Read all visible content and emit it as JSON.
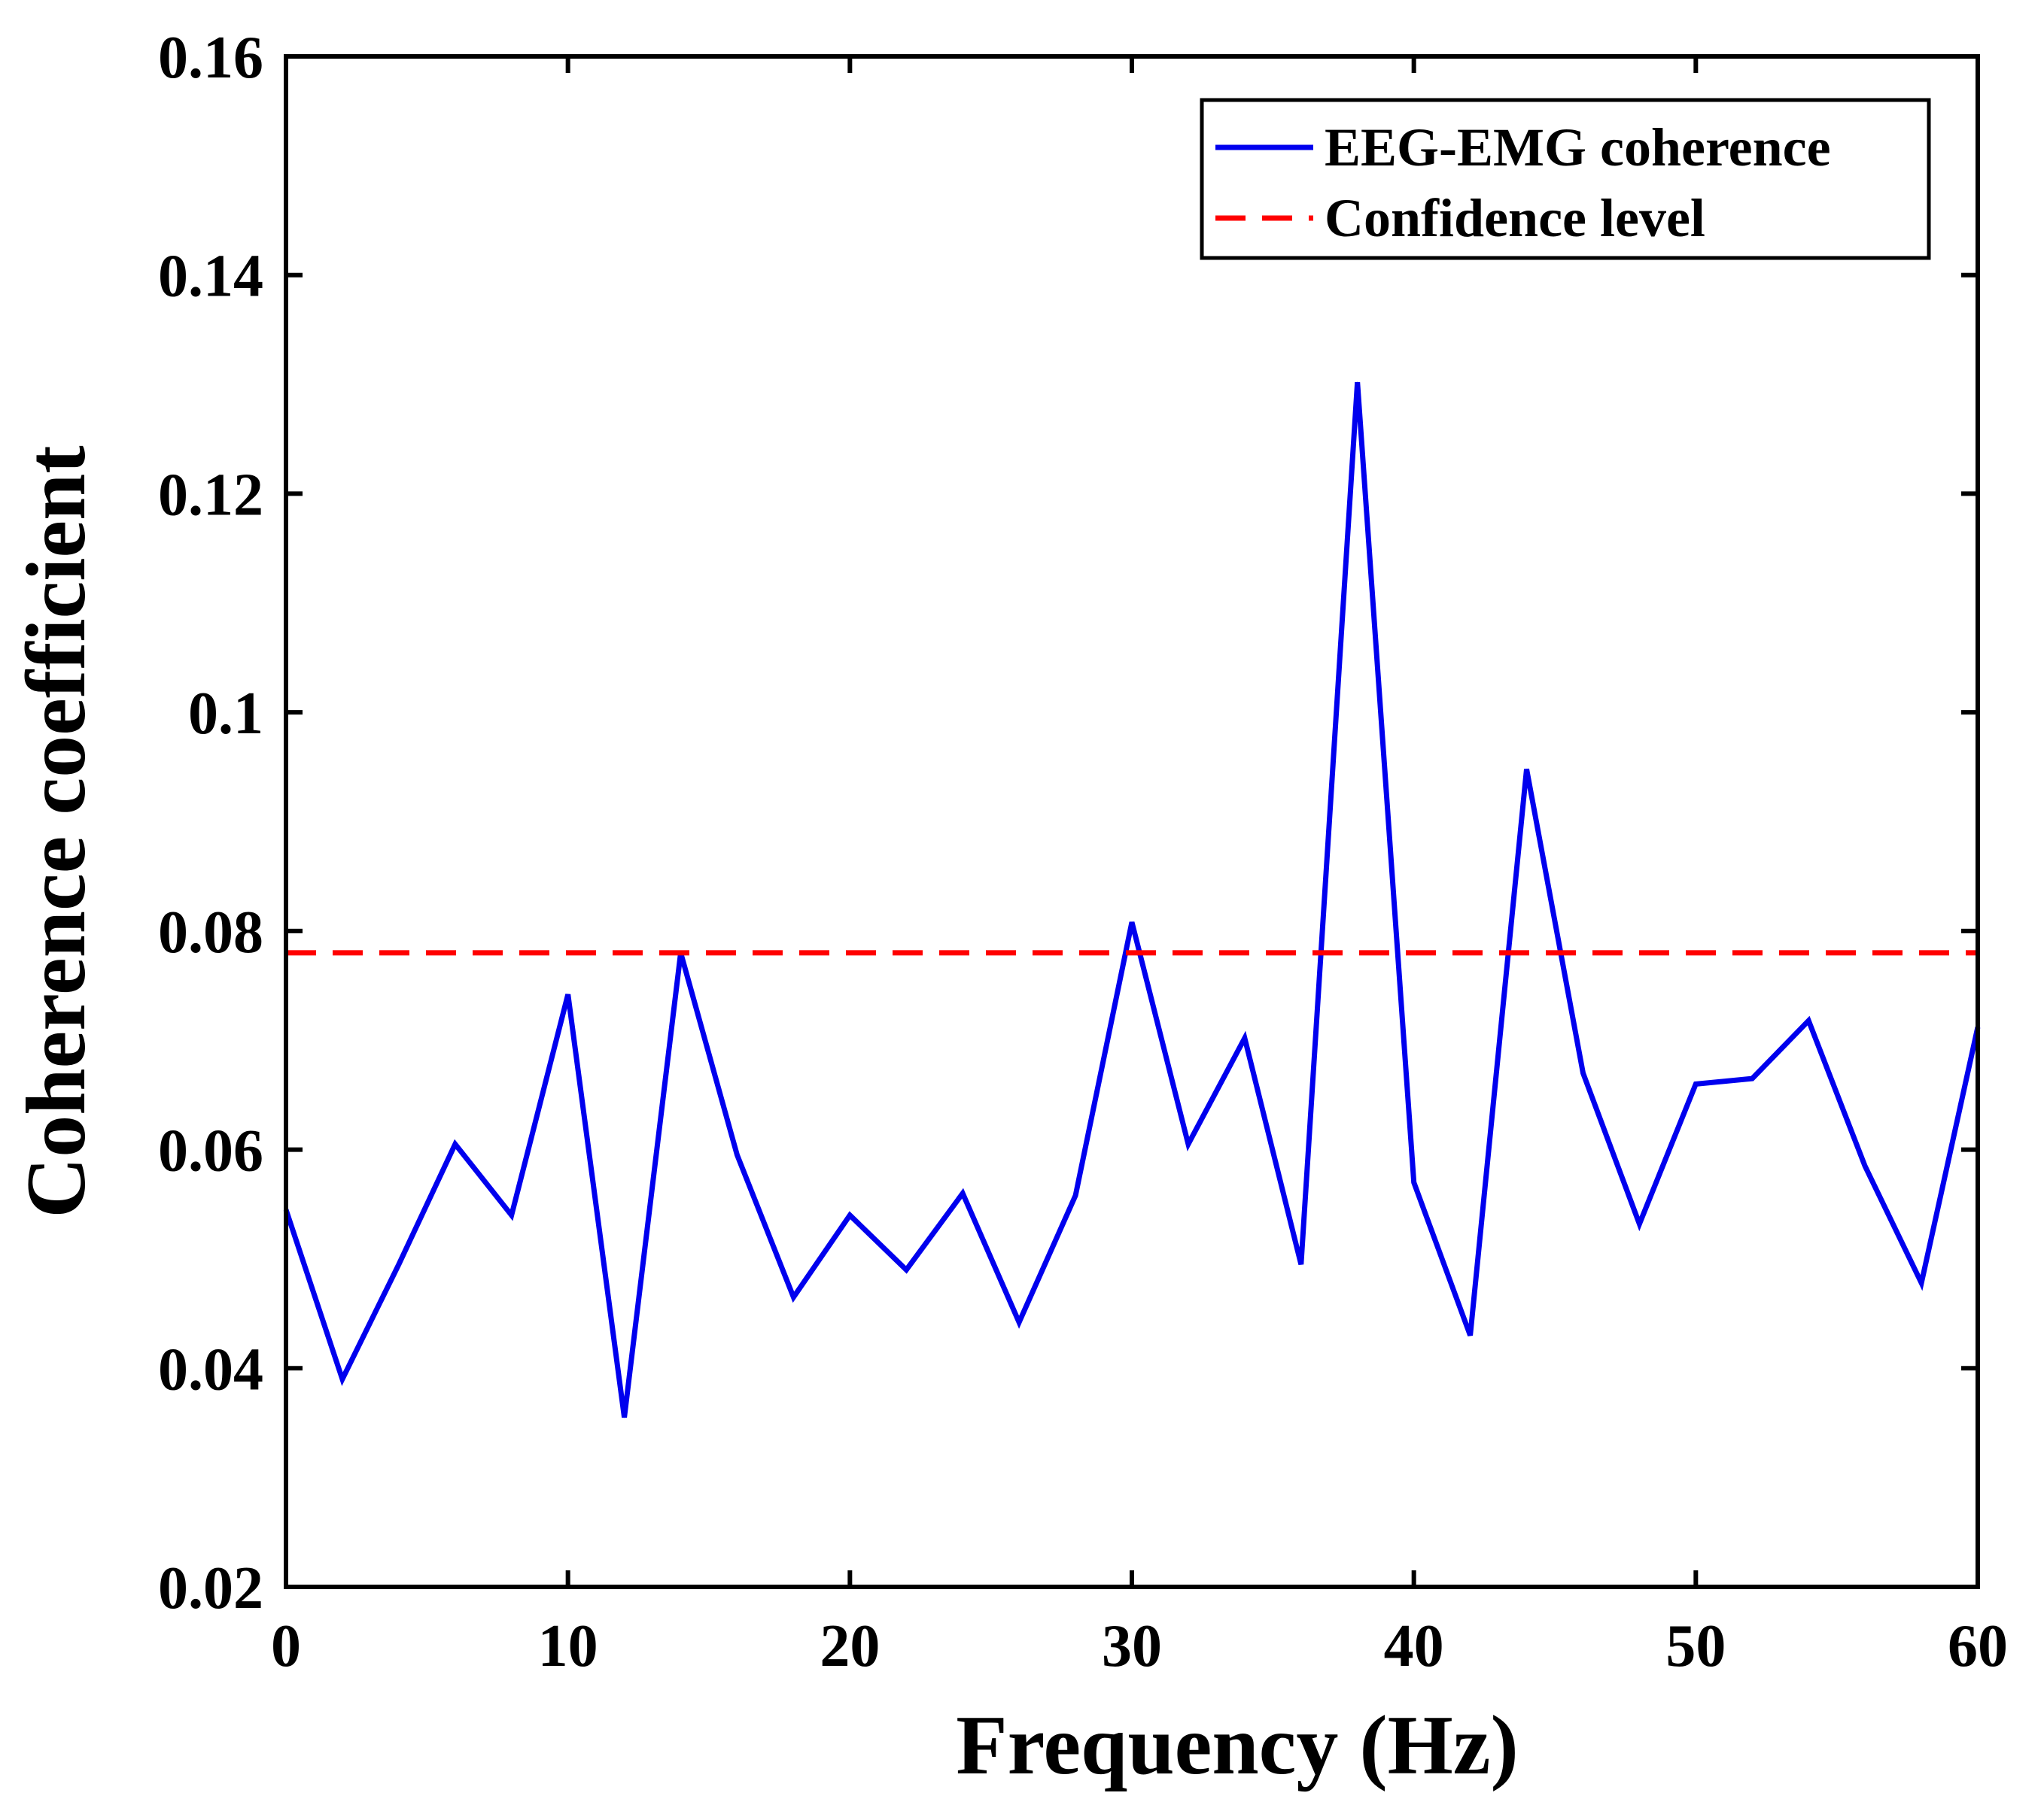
{
  "chart_data": {
    "type": "line",
    "title": "",
    "xlabel": "Frequency (Hz)",
    "ylabel": "Coherence coefficient",
    "xlim": [
      0,
      60
    ],
    "ylim": [
      0.02,
      0.16
    ],
    "xticks": [
      0,
      10,
      20,
      30,
      40,
      50,
      60
    ],
    "xtick_labels": [
      "0",
      "10",
      "20",
      "30",
      "40",
      "50",
      "60"
    ],
    "yticks": [
      0.02,
      0.04,
      0.06,
      0.08,
      0.1,
      0.12,
      0.14,
      0.16
    ],
    "ytick_labels": [
      "0.02",
      "0.04",
      "0.06",
      "0.08",
      "0.1",
      "0.12",
      "0.14",
      "0.16"
    ],
    "grid": false,
    "legend_position": "top-right",
    "series": [
      {
        "name": "EEG-EMG coherence",
        "color": "#0000ee",
        "style": "solid",
        "x": [
          0,
          2,
          4,
          6,
          8,
          10,
          12,
          14,
          16,
          18,
          20,
          22,
          24,
          26,
          28,
          30,
          32,
          34,
          36,
          38,
          40,
          42,
          44,
          46,
          48,
          50,
          52,
          54,
          56,
          58,
          60
        ],
        "values": [
          0.0545,
          0.039,
          0.0495,
          0.0605,
          0.054,
          0.0742,
          0.0355,
          0.078,
          0.0595,
          0.0465,
          0.054,
          0.049,
          0.056,
          0.0442,
          0.0558,
          0.0808,
          0.0605,
          0.0702,
          0.0495,
          0.1302,
          0.057,
          0.043,
          0.0948,
          0.067,
          0.0532,
          0.066,
          0.0665,
          0.0718,
          0.0585,
          0.0478,
          0.0712
        ]
      },
      {
        "name": "Confidence level",
        "color": "#ff0000",
        "style": "dashed",
        "x": [
          0,
          60
        ],
        "values": [
          0.078,
          0.078
        ]
      }
    ]
  }
}
